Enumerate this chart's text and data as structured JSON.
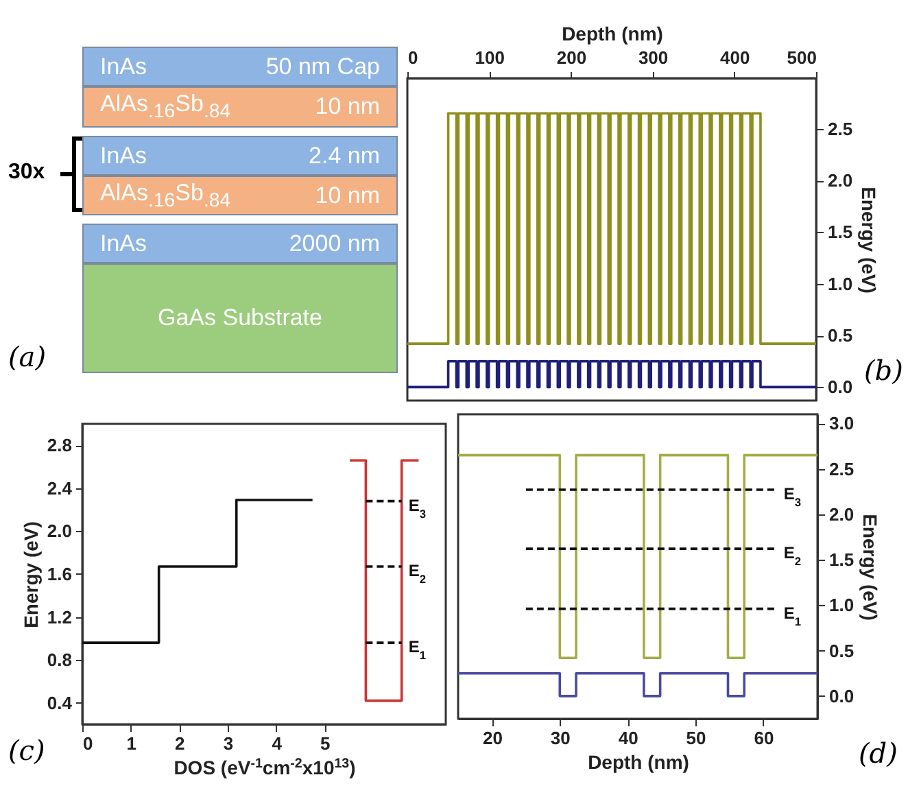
{
  "chart_data": [
    {
      "type": "other",
      "annotations": [
        "InAs",
        "50 nm Cap",
        "AlAs$_{.16}$Sb$_{.84}$",
        "10 nm",
        "InAs",
        "2.4 nm",
        "AlAs$_{.16}$Sb$_{.84}$",
        "10 nm",
        "InAs",
        "2000 nm",
        "GaAs Substrate",
        "30x",
        "(a)"
      ],
      "colors": [
        "#8db4e2",
        "#f4b183",
        "#8db4e2",
        "#f4b183",
        "#8db4e2",
        "#9ccc7e"
      ]
    },
    {
      "type": "step",
      "xlabel": "Depth (nm)",
      "ylabel": "Energy (eV)",
      "xlim": [
        0,
        500
      ],
      "ylim": [
        -0.13,
        2.99
      ],
      "xticks": [
        0,
        100,
        200,
        300,
        400,
        500
      ],
      "yticks": [
        {
          "value": 0,
          "label": "0.0"
        },
        {
          "value": 0.5,
          "label": "0.5"
        },
        {
          "value": 1,
          "label": "1.0"
        },
        {
          "value": 1.5,
          "label": "1.5"
        },
        {
          "value": 2,
          "label": "2.0"
        },
        {
          "value": 2.5,
          "label": "2.5"
        }
      ],
      "annotations": [
        "(b)"
      ],
      "series": [
        {
          "color": "#8f8f1f",
          "x": [
            0,
            50,
            60,
            62.4,
            72.4,
            74.8,
            84.8,
            87.2,
            97.2,
            99.6,
            109.6,
            112,
            122,
            124.4,
            134.4,
            136.8,
            146.8,
            149.2,
            159.2,
            161.6,
            171.6,
            174,
            184,
            186.4,
            196.4,
            198.8,
            208.8,
            211.2,
            221.2,
            223.6,
            233.6,
            236,
            246,
            248.4,
            258.4,
            260.8,
            270.8,
            273.2,
            283.2,
            285.6,
            295.6,
            298,
            308,
            310.4,
            320.4,
            322.8,
            332.8,
            335.2,
            345.2,
            347.6,
            357.6,
            360,
            370,
            372.4,
            382.4,
            384.8,
            394.8,
            397.2,
            407.2,
            409.6,
            419.6,
            422,
            432,
            500
          ],
          "values": [
            0.42,
            2.65,
            0.42,
            2.65,
            0.42,
            2.65,
            0.42,
            2.65,
            0.42,
            2.65,
            0.42,
            2.65,
            0.42,
            2.65,
            0.42,
            2.65,
            0.42,
            2.65,
            0.42,
            2.65,
            0.42,
            2.65,
            0.42,
            2.65,
            0.42,
            2.65,
            0.42,
            2.65,
            0.42,
            2.65,
            0.42,
            2.65,
            0.42,
            2.65,
            0.42,
            2.65,
            0.42,
            2.65,
            0.42,
            2.65,
            0.42,
            2.65,
            0.42,
            2.65,
            0.42,
            2.65,
            0.42,
            2.65,
            0.42,
            2.65,
            0.42,
            2.65,
            0.42,
            2.65,
            0.42,
            2.65,
            0.42,
            2.65,
            0.42,
            2.65,
            0.42,
            2.65,
            0.42,
            0.42
          ]
        },
        {
          "color": "#1f1f7a",
          "x": [
            0,
            50,
            60,
            62.4,
            72.4,
            74.8,
            84.8,
            87.2,
            97.2,
            99.6,
            109.6,
            112,
            122,
            124.4,
            134.4,
            136.8,
            146.8,
            149.2,
            159.2,
            161.6,
            171.6,
            174,
            184,
            186.4,
            196.4,
            198.8,
            208.8,
            211.2,
            221.2,
            223.6,
            233.6,
            236,
            246,
            248.4,
            258.4,
            260.8,
            270.8,
            273.2,
            283.2,
            285.6,
            295.6,
            298,
            308,
            310.4,
            320.4,
            322.8,
            332.8,
            335.2,
            345.2,
            347.6,
            357.6,
            360,
            370,
            372.4,
            382.4,
            384.8,
            394.8,
            397.2,
            407.2,
            409.6,
            419.6,
            422,
            432,
            500
          ],
          "values": [
            0,
            0.25,
            0,
            0.25,
            0,
            0.25,
            0,
            0.25,
            0,
            0.25,
            0,
            0.25,
            0,
            0.25,
            0,
            0.25,
            0,
            0.25,
            0,
            0.25,
            0,
            0.25,
            0,
            0.25,
            0,
            0.25,
            0,
            0.25,
            0,
            0.25,
            0,
            0.25,
            0,
            0.25,
            0,
            0.25,
            0,
            0.25,
            0,
            0.25,
            0,
            0.25,
            0,
            0.25,
            0,
            0.25,
            0,
            0.25,
            0,
            0.25,
            0,
            0.25,
            0,
            0.25,
            0,
            0.25,
            0,
            0.25,
            0,
            0.25,
            0,
            0.25,
            0,
            0
          ]
        }
      ]
    },
    {
      "type": "step",
      "xlabel": "DOS (eV$^{-1}$cm$^{-2}$x10$^{13}$)",
      "ylabel": "Energy (eV)",
      "xlim": [
        0,
        7.5
      ],
      "ylim": [
        0.2,
        3.0
      ],
      "xticks": [
        0,
        1,
        2,
        3,
        4,
        5
      ],
      "yticks": [
        0.4,
        0.8,
        1.2,
        1.6,
        {
          "value": 2,
          "label": "2.0"
        },
        2.4,
        2.8
      ],
      "annotations": [
        "(c)"
      ],
      "series": [
        {
          "color": "#111111",
          "x": [
            0,
            1.58,
            3.18,
            4.75
          ],
          "values": [
            0.96,
            1.67,
            2.29,
            2.29
          ]
        },
        {
          "type": "line",
          "color": "#cc3333",
          "x": [
            5.52,
            5.85,
            5.85,
            6.59,
            6.59,
            6.94
          ],
          "values": [
            2.66,
            2.66,
            0.42,
            0.42,
            2.66,
            2.66
          ]
        },
        {
          "type": "line",
          "name": "E$_{3}$",
          "color": "#111111",
          "line_style": "dashed",
          "x": [
            5.85,
            6.59
          ],
          "values": [
            2.28,
            2.28
          ]
        },
        {
          "type": "line",
          "name": "E$_{2}$",
          "color": "#111111",
          "line_style": "dashed",
          "x": [
            5.85,
            6.59
          ],
          "values": [
            1.67,
            1.67
          ]
        },
        {
          "type": "line",
          "name": "E$_{1}$",
          "color": "#111111",
          "line_style": "dashed",
          "x": [
            5.85,
            6.59
          ],
          "values": [
            0.96,
            0.96
          ]
        }
      ]
    },
    {
      "type": "step",
      "xlabel": "Depth (nm)",
      "ylabel": "Energy (eV)",
      "xlim": [
        15,
        68
      ],
      "ylim": [
        -0.25,
        3.1
      ],
      "xticks": [
        20,
        30,
        40,
        50,
        60
      ],
      "yticks": [
        {
          "value": 0,
          "label": "0.0"
        },
        {
          "value": 0.5,
          "label": "0.5"
        },
        {
          "value": 1,
          "label": "1.0"
        },
        {
          "value": 1.5,
          "label": "1.5"
        },
        {
          "value": 2,
          "label": "2.0"
        },
        {
          "value": 2.5,
          "label": "2.5"
        },
        {
          "value": 3,
          "label": "3.0"
        }
      ],
      "annotations": [
        "(d)"
      ],
      "series": [
        {
          "color": "#a3ad48",
          "x": [
            15,
            30,
            32.4,
            42.4,
            44.8,
            54.8,
            57.2,
            68
          ],
          "values": [
            2.65,
            0.42,
            2.65,
            0.42,
            2.65,
            0.42,
            2.65,
            2.65
          ]
        },
        {
          "color": "#4a4aa0",
          "x": [
            15,
            30,
            32.4,
            42.4,
            44.8,
            54.8,
            57.2,
            68
          ],
          "values": [
            0.25,
            0,
            0.25,
            0,
            0.25,
            0,
            0.25,
            0.25
          ]
        },
        {
          "type": "line",
          "name": "E$_{3}$",
          "color": "#111111",
          "line_style": "dashed",
          "x": [
            25,
            62
          ],
          "values": [
            2.27,
            2.27
          ]
        },
        {
          "type": "line",
          "name": "E$_{2}$",
          "color": "#111111",
          "line_style": "dashed",
          "x": [
            25,
            62
          ],
          "values": [
            1.62,
            1.62
          ]
        },
        {
          "type": "line",
          "name": "E$_{1}$",
          "color": "#111111",
          "line_style": "dashed",
          "x": [
            25,
            62
          ],
          "values": [
            0.96,
            0.96
          ]
        }
      ]
    }
  ]
}
